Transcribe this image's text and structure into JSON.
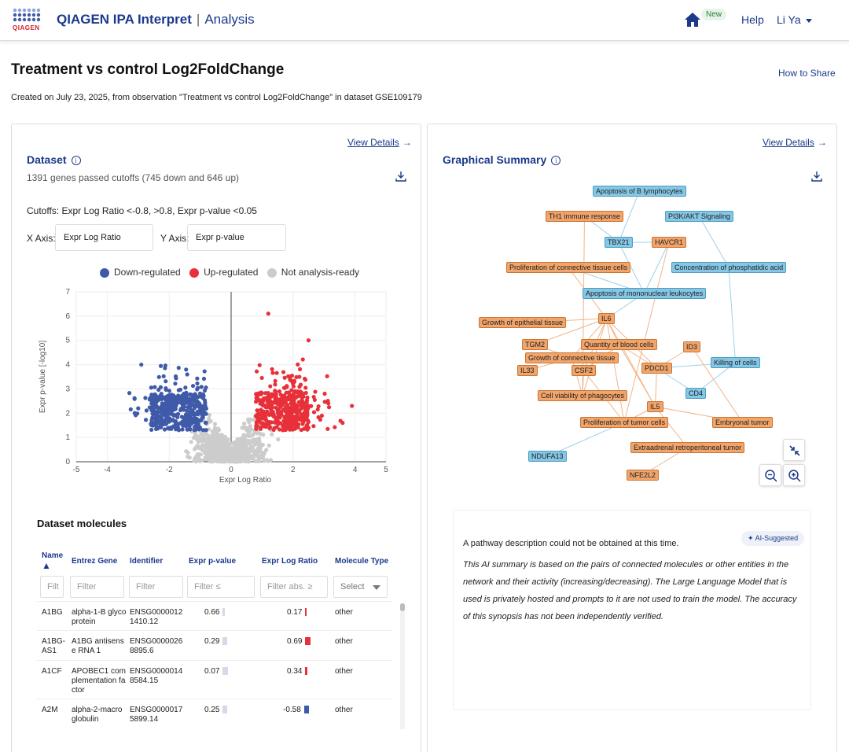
{
  "header": {
    "brand": "QIAGEN",
    "app_name": "QIAGEN IPA Interpret",
    "separator": "|",
    "section": "Analysis",
    "new_badge": "New",
    "help": "Help",
    "user": "Li Ya"
  },
  "page": {
    "title": "Treatment vs control Log2FoldChange",
    "how_to_share": "How to Share",
    "created": "Created on July 23, 2025, from observation \"Treatment vs control Log2FoldChange\" in dataset GSE109179"
  },
  "dataset": {
    "view_details": "View Details",
    "title": "Dataset",
    "summary": "1391 genes passed cutoffs (745 down and 646 up)",
    "cutoffs": "Cutoffs:  Expr Log Ratio <-0.8, >0.8, Expr p-value <0.05",
    "x_axis_label": "X Axis:",
    "x_axis_value": "Expr Log Ratio",
    "y_axis_label": "Y Axis:",
    "y_axis_value": "Expr p-value",
    "legend": [
      "Down-regulated",
      "Up-regulated",
      "Not analysis-ready"
    ]
  },
  "chart_data": {
    "type": "scatter",
    "title": "",
    "xlabel": "Expr Log Ratio",
    "ylabel": "Expr p-value [-log10]",
    "xlim": [
      -5,
      5
    ],
    "ylim": [
      0,
      7
    ],
    "x_ticks": [
      "-5",
      "-4",
      "-2",
      "0",
      "2",
      "4",
      "5"
    ],
    "y_ticks": [
      "0",
      "1",
      "2",
      "3",
      "4",
      "5",
      "6",
      "7"
    ],
    "grid": true,
    "series": [
      {
        "name": "Down-regulated",
        "color": "#3f5aa8"
      },
      {
        "name": "Up-regulated",
        "color": "#e8303a"
      },
      {
        "name": "Not analysis-ready",
        "color": "#cccccc"
      }
    ]
  },
  "molecules": {
    "title": "Dataset molecules",
    "columns": [
      "Name",
      "Entrez Gene",
      "Identifier",
      "Expr p-value",
      "Expr Log Ratio",
      "Molecule Type"
    ],
    "filters": [
      "Filt",
      "Filter",
      "Filter",
      "Filter ≤",
      "Filter abs. ≥",
      "Select"
    ],
    "rows": [
      {
        "name": "A1BG",
        "entrez": "alpha-1-B glycoprotein",
        "id": "ENSG00000121410.12",
        "pval": "0.66",
        "ratio": "0.17",
        "type": "other",
        "pbar": 0.66,
        "rbar": 0.17
      },
      {
        "name": "A1BG-AS1",
        "entrez": "A1BG antisense RNA 1",
        "id": "ENSG00000268895.6",
        "pval": "0.29",
        "ratio": "0.69",
        "type": "other",
        "pbar": 0.29,
        "rbar": 0.69
      },
      {
        "name": "A1CF",
        "entrez": "APOBEC1 complementation factor",
        "id": "ENSG00000148584.15",
        "pval": "0.07",
        "ratio": "0.34",
        "type": "other",
        "pbar": 0.07,
        "rbar": 0.34
      },
      {
        "name": "A2M",
        "entrez": "alpha-2-macroglobulin",
        "id": "ENSG00000175899.14",
        "pval": "0.25",
        "ratio": "-0.58",
        "type": "other",
        "pbar": 0.25,
        "rbar": -0.58
      }
    ]
  },
  "graphical": {
    "view_details": "View Details",
    "title": "Graphical Summary",
    "nodes": [
      {
        "label": "Apoptosis of B lymphocytes",
        "color": "blue"
      },
      {
        "label": "TH1 immune response",
        "color": "orange"
      },
      {
        "label": "PI3K/AKT Signaling",
        "color": "blue"
      },
      {
        "label": "TBX21",
        "color": "blue"
      },
      {
        "label": "HAVCR1",
        "color": "orange"
      },
      {
        "label": "Proliferation of connective tissue cells",
        "color": "orange"
      },
      {
        "label": "Concentration of phosphatidic acid",
        "color": "blue"
      },
      {
        "label": "Apoptosis of mononuclear leukocytes",
        "color": "blue"
      },
      {
        "label": "Growth of epithelial tissue",
        "color": "orange"
      },
      {
        "label": "IL6",
        "color": "orange"
      },
      {
        "label": "TGM2",
        "color": "orange"
      },
      {
        "label": "Quantity of blood cells",
        "color": "orange"
      },
      {
        "label": "ID3",
        "color": "orange"
      },
      {
        "label": "Growth of connective tissue",
        "color": "orange"
      },
      {
        "label": "Killing of cells",
        "color": "blue"
      },
      {
        "label": "IL33",
        "color": "orange"
      },
      {
        "label": "CSF2",
        "color": "orange"
      },
      {
        "label": "PDCD1",
        "color": "orange"
      },
      {
        "label": "CD4",
        "color": "blue"
      },
      {
        "label": "Cell viability of phagocytes",
        "color": "orange"
      },
      {
        "label": "IL5",
        "color": "orange"
      },
      {
        "label": "Proliferation of tumor cells",
        "color": "orange"
      },
      {
        "label": "Embryonal tumor",
        "color": "orange"
      },
      {
        "label": "Extraadrenal retroperitoneal tumor",
        "color": "orange"
      },
      {
        "label": "NDUFA13",
        "color": "blue"
      },
      {
        "label": "NFE2L2",
        "color": "orange"
      }
    ],
    "ai_badge": "AI-Suggested",
    "ai_main": "A pathway description could not be obtained at this time.",
    "ai_note": "This AI summary is based on the pairs of connected molecules or other entities in the network and their activity (increasing/decreasing). The Large Language Model that is used is privately hosted and prompts to it are not used to train the model. The accuracy of this synopsis has not been independently verified."
  }
}
